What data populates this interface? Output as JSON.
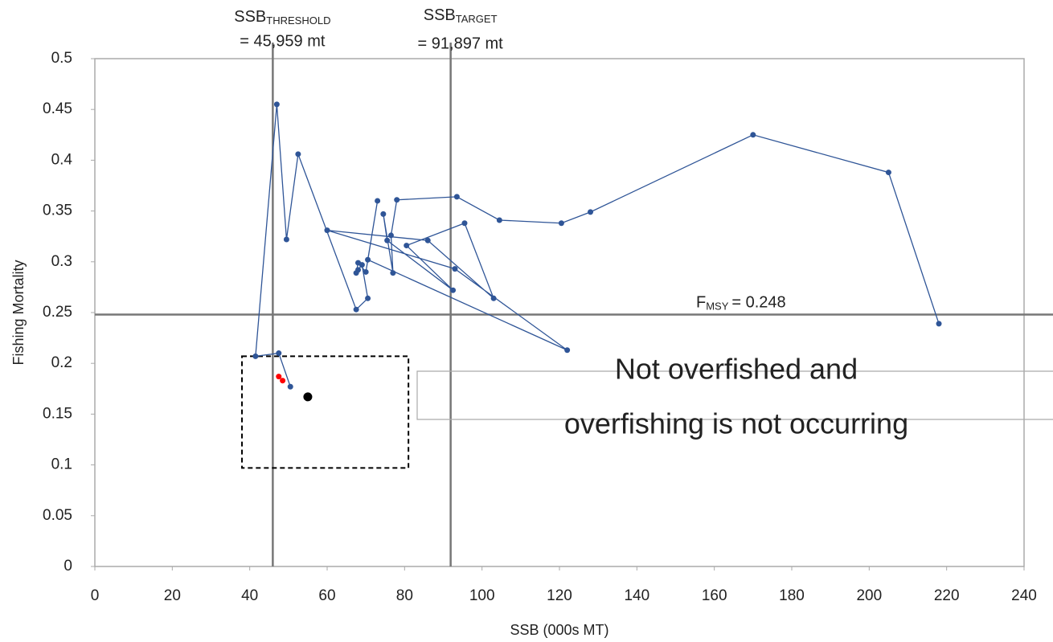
{
  "chart_data": {
    "type": "line",
    "x_label": "SSB (000s MT)",
    "y_label": "Fishing Mortality",
    "xlim": [
      0,
      240
    ],
    "xticks": [
      0,
      20,
      40,
      60,
      80,
      100,
      120,
      140,
      160,
      180,
      200,
      220,
      240
    ],
    "ylim": [
      0,
      0.5
    ],
    "yticks": [
      0,
      0.05,
      0.1,
      0.15,
      0.2,
      0.25,
      0.3,
      0.35,
      0.4,
      0.45,
      0.5
    ],
    "series": [
      {
        "color": "#2f5597",
        "markers": true,
        "x": [
          218,
          205,
          170,
          128,
          120.5,
          104.5,
          93.5,
          78,
          76.5,
          77,
          74.5,
          75.5,
          92.5,
          80.5,
          95.5,
          103,
          86,
          60,
          93,
          122,
          70.5,
          73,
          70,
          68,
          67.5,
          68,
          69,
          70.5,
          67.5,
          52.5,
          49.5,
          47,
          41.5,
          47.5,
          50.5
        ],
        "y": [
          0.239,
          0.388,
          0.425,
          0.349,
          0.338,
          0.341,
          0.364,
          0.361,
          0.326,
          0.289,
          0.347,
          0.321,
          0.272,
          0.316,
          0.338,
          0.264,
          0.321,
          0.331,
          0.293,
          0.213,
          0.302,
          0.36,
          0.29,
          0.299,
          0.289,
          0.292,
          0.297,
          0.264,
          0.253,
          0.406,
          0.322,
          0.455,
          0.207,
          0.21,
          0.177
        ]
      },
      {
        "color": "#ff0000",
        "markers": true,
        "line": false,
        "x": [
          47.5,
          48.5
        ],
        "y": [
          0.187,
          0.183
        ]
      },
      {
        "color": "#000000",
        "markers": true,
        "line": false,
        "big": true,
        "x": [
          55
        ],
        "y": [
          0.167
        ]
      }
    ],
    "reference_lines": [
      {
        "axis": "x",
        "value": 45.959,
        "name": "SSB",
        "subscript": "THRESHOLD",
        "label": "= 45,959 mt"
      },
      {
        "axis": "x",
        "value": 91.897,
        "name": "SSB",
        "subscript": "TARGET",
        "label": "= 91,897 mt"
      },
      {
        "axis": "y",
        "value": 0.248,
        "name": "F",
        "subscript": "MSY",
        "label": "= 0.248"
      }
    ],
    "region": {
      "x": [
        38,
        81
      ],
      "y": [
        0.097,
        0.207
      ]
    },
    "annotation": [
      "Not overfished and",
      "overfishing is not occurring"
    ]
  }
}
